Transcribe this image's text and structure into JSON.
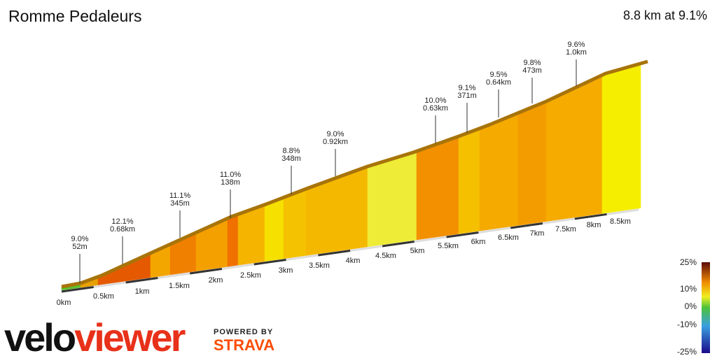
{
  "header": {
    "title": "Romme Pedaleurs",
    "summary": "8.8 km at 9.1%"
  },
  "segments": [
    {
      "grade": "9.0%",
      "length": "52m"
    },
    {
      "grade": "12.1%",
      "length": "0.68km"
    },
    {
      "grade": "11.1%",
      "length": "345m"
    },
    {
      "grade": "11.0%",
      "length": "138m"
    },
    {
      "grade": "8.8%",
      "length": "348m"
    },
    {
      "grade": "9.0%",
      "length": "0.92km"
    },
    {
      "grade": "10.0%",
      "length": "0.63km"
    },
    {
      "grade": "9.1%",
      "length": "371m"
    },
    {
      "grade": "9.5%",
      "length": "0.64km"
    },
    {
      "grade": "9.8%",
      "length": "473m"
    },
    {
      "grade": "9.6%",
      "length": "1.0km"
    }
  ],
  "distance_labels": [
    "0km",
    "0.5km",
    "1km",
    "1.5km",
    "2km",
    "2.5km",
    "3km",
    "3.5km",
    "4km",
    "4.5km",
    "5km",
    "5.5km",
    "6km",
    "6.5km",
    "7km",
    "7.5km",
    "8km",
    "8.5km"
  ],
  "legend_labels": [
    "25%",
    "10%",
    "0%",
    "-10%",
    "-25%"
  ],
  "branding": {
    "logo_left": "velo",
    "logo_right": "viewer",
    "powered": "POWERED BY",
    "strava": "STRAVA"
  }
}
